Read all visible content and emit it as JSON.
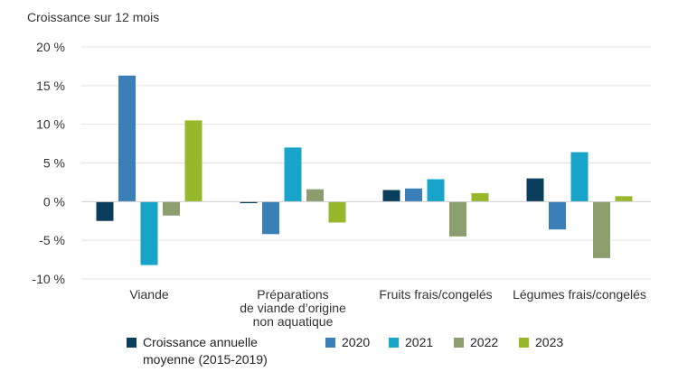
{
  "chart_data": {
    "type": "bar",
    "title": "",
    "ylabel": "Croissance sur 12 mois",
    "xlabel": "",
    "ylim": [
      -10,
      20
    ],
    "yticks": [
      20,
      15,
      10,
      5,
      0,
      -5,
      -10
    ],
    "ytick_labels": [
      "20 %",
      "15 %",
      "10 %",
      "5 %",
      "0 %",
      "-5 %",
      "-10 %"
    ],
    "categories": [
      [
        "Viande"
      ],
      [
        "Préparations",
        "de viande d’origine",
        "non aquatique"
      ],
      [
        "Fruits frais/congelés"
      ],
      [
        "Légumes frais/congelés"
      ]
    ],
    "series": [
      {
        "name": "Croissance annuelle moyenne (2015-2019)",
        "name_lines": [
          "Croissance annuelle",
          "moyenne (2015-2019)"
        ],
        "color": "#0b3d5c",
        "values": [
          -2.5,
          -0.2,
          1.5,
          3.0
        ]
      },
      {
        "name": "2020",
        "name_lines": [
          "2020"
        ],
        "color": "#3a7fb8",
        "values": [
          16.3,
          -4.2,
          1.7,
          -3.6
        ]
      },
      {
        "name": "2021",
        "name_lines": [
          "2021"
        ],
        "color": "#17a4c8",
        "values": [
          -8.2,
          7.0,
          2.9,
          6.4
        ]
      },
      {
        "name": "2022",
        "name_lines": [
          "2022"
        ],
        "color": "#8c9e6e",
        "values": [
          -1.8,
          1.6,
          -4.5,
          -7.3
        ]
      },
      {
        "name": "2023",
        "name_lines": [
          "2023"
        ],
        "color": "#96b82a",
        "values": [
          10.5,
          -2.7,
          1.1,
          0.7
        ]
      }
    ],
    "grid": true,
    "legend_position": "bottom"
  }
}
